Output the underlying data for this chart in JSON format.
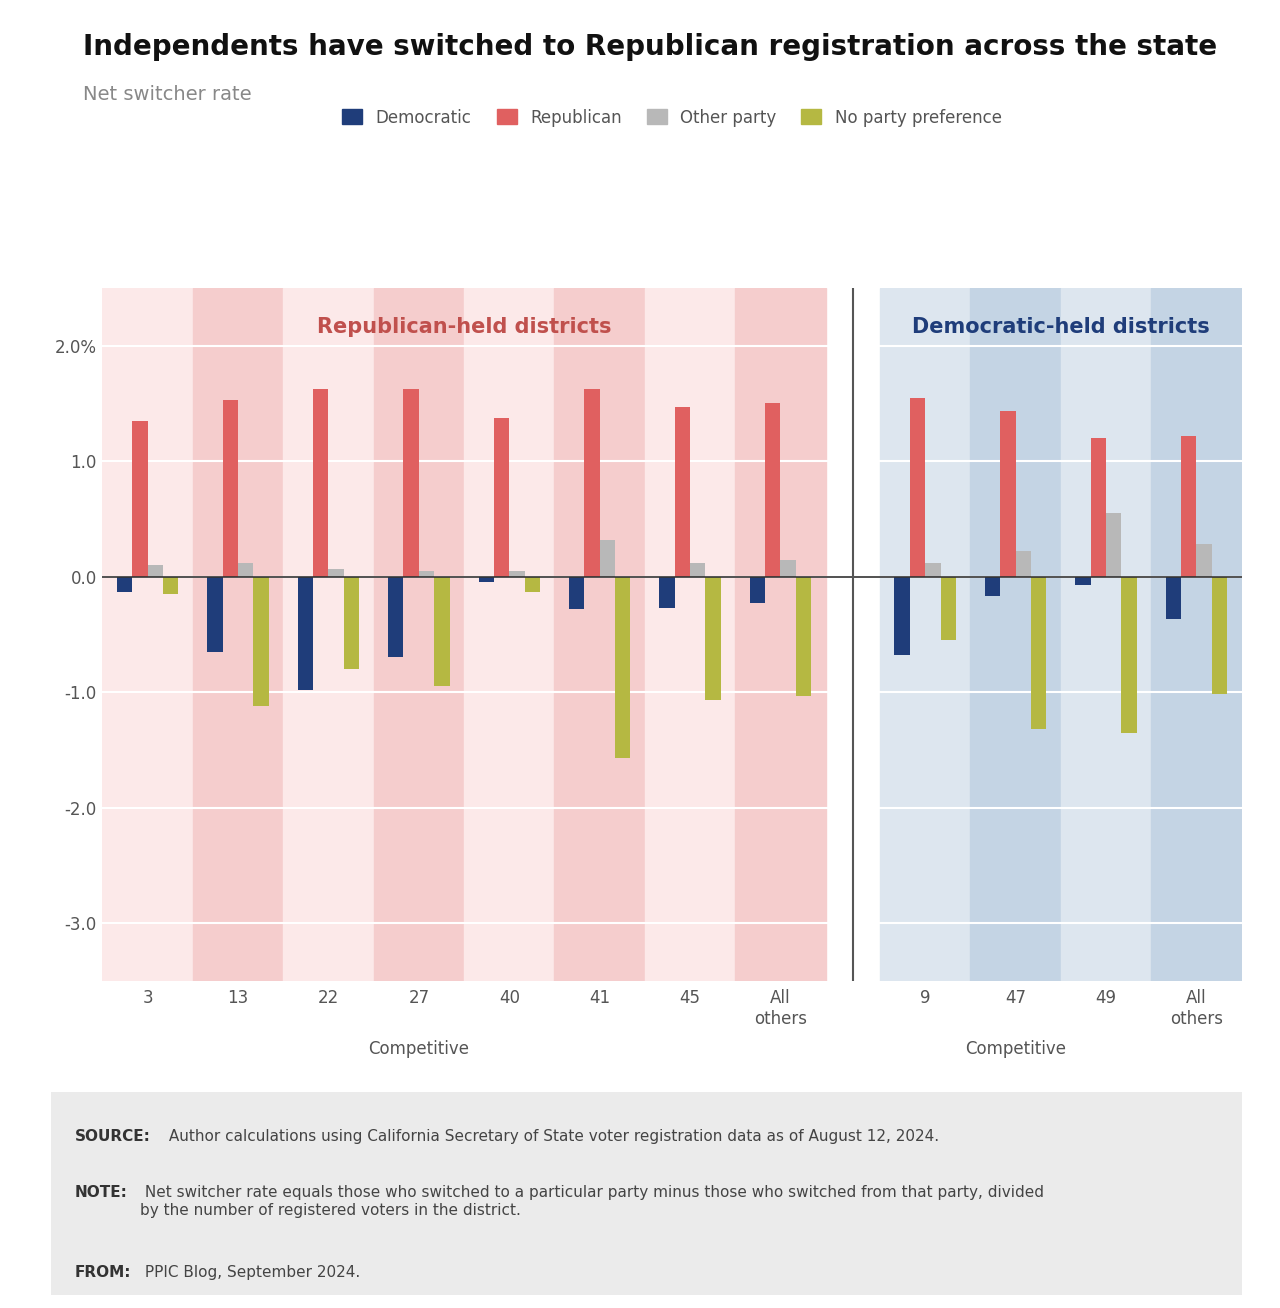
{
  "title": "Independents have switched to Republican registration across the state",
  "subtitle": "Net switcher rate",
  "legend_labels": [
    "Democratic",
    "Republican",
    "Other party",
    "No party preference"
  ],
  "legend_colors": [
    "#1f3d7a",
    "#e06060",
    "#b8b8b8",
    "#b5b842"
  ],
  "rep_districts": {
    "label": "Republican-held districts",
    "color_bg_light": "#fce9e9",
    "color_bg_dark": "#f5cdcd",
    "label_color": "#c0504d",
    "districts": [
      "3",
      "13",
      "22",
      "27",
      "40",
      "41",
      "45",
      "All\nothers"
    ],
    "democratic": [
      -0.13,
      -0.65,
      -0.98,
      -0.7,
      -0.05,
      -0.28,
      -0.27,
      -0.23
    ],
    "republican": [
      1.35,
      1.53,
      1.62,
      1.62,
      1.37,
      1.62,
      1.47,
      1.5
    ],
    "other": [
      0.1,
      0.12,
      0.07,
      0.05,
      0.05,
      0.32,
      0.12,
      0.14
    ],
    "npp": [
      -0.15,
      -1.12,
      -0.8,
      -0.95,
      -0.13,
      -1.57,
      -1.07,
      -1.03
    ]
  },
  "dem_districts": {
    "label": "Democratic-held districts",
    "color_bg_light": "#dde6ef",
    "color_bg_dark": "#c4d4e4",
    "label_color": "#1f3d7a",
    "districts": [
      "9",
      "47",
      "49",
      "All\nothers"
    ],
    "democratic": [
      -0.68,
      -0.17,
      -0.07,
      -0.37
    ],
    "republican": [
      1.55,
      1.43,
      1.2,
      1.22
    ],
    "other": [
      0.12,
      0.22,
      0.55,
      0.28
    ],
    "npp": [
      -0.55,
      -1.32,
      -1.35,
      -1.02
    ]
  },
  "ylim": [
    -3.5,
    2.5
  ],
  "yticks": [
    -3.0,
    -2.0,
    -1.0,
    0.0,
    1.0,
    2.0
  ],
  "bar_width": 0.17,
  "source_bold": "SOURCE:",
  "source_rest": " Author calculations using California Secretary of State voter registration data as of August 12, 2024.",
  "note_bold": "NOTE:",
  "note_rest": " Net switcher rate equals those who switched to a particular party minus those who switched from that party, divided\nby the number of registered voters in the district.",
  "from_bold": "FROM:",
  "from_rest": " PPIC Blog, September 2024.",
  "background_color": "#ffffff",
  "footer_bg_color": "#ebebeb"
}
